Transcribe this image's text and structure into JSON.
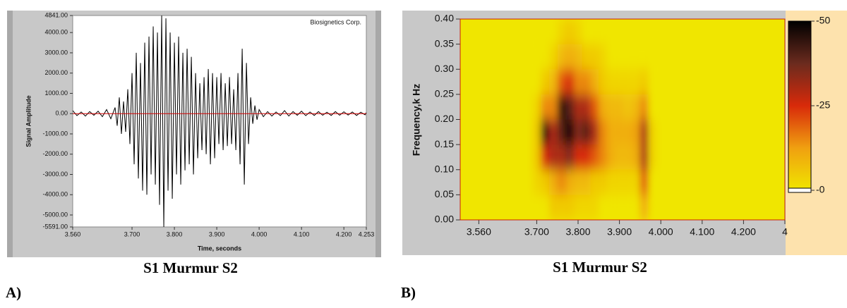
{
  "chart_data": [
    {
      "type": "line",
      "xlabel": "Time, seconds",
      "ylabel": "Signal Amplitude",
      "annotation": "Biosignetics Corp.",
      "caption": "S1   Murmur  S2",
      "panel": "A)",
      "xlim": [
        3.56,
        4.253
      ],
      "ylim": [
        -5591,
        4841
      ],
      "xticks": [
        {
          "value": 3.56,
          "label": "3.560"
        },
        {
          "value": 3.7,
          "label": "3.700"
        },
        {
          "value": 3.8,
          "label": "3.800"
        },
        {
          "value": 3.9,
          "label": "3.900"
        },
        {
          "value": 4.0,
          "label": "4.000"
        },
        {
          "value": 4.1,
          "label": "4.100"
        },
        {
          "value": 4.2,
          "label": "4.200"
        },
        {
          "value": 4.253,
          "label": "4.253"
        }
      ],
      "yticks": [
        {
          "value": 4841,
          "label": "4841.00"
        },
        {
          "value": 4000,
          "label": "4000.00"
        },
        {
          "value": 3000,
          "label": "3000.00"
        },
        {
          "value": 2000,
          "label": "2000.00"
        },
        {
          "value": 1000,
          "label": "1000.00"
        },
        {
          "value": 0,
          "label": "0.00"
        },
        {
          "value": -1000,
          "label": "-1000.00"
        },
        {
          "value": -2000,
          "label": "-2000.00"
        },
        {
          "value": -3000,
          "label": "-3000.00"
        },
        {
          "value": -4000,
          "label": "-4000.00"
        },
        {
          "value": -5000,
          "label": "-5000.00"
        },
        {
          "value": -5591,
          "label": "-5591.00"
        }
      ],
      "series": [
        {
          "color": "#000000",
          "x": [
            3.56,
            3.57,
            3.58,
            3.59,
            3.6,
            3.61,
            3.62,
            3.63,
            3.64,
            3.65,
            3.66,
            3.665,
            3.67,
            3.675,
            3.68,
            3.685,
            3.69,
            3.695,
            3.7,
            3.705,
            3.71,
            3.715,
            3.72,
            3.725,
            3.73,
            3.735,
            3.74,
            3.745,
            3.75,
            3.755,
            3.76,
            3.765,
            3.77,
            3.775,
            3.78,
            3.785,
            3.79,
            3.795,
            3.8,
            3.805,
            3.81,
            3.815,
            3.82,
            3.825,
            3.83,
            3.835,
            3.84,
            3.845,
            3.85,
            3.855,
            3.86,
            3.865,
            3.87,
            3.875,
            3.88,
            3.885,
            3.89,
            3.895,
            3.9,
            3.905,
            3.91,
            3.915,
            3.92,
            3.925,
            3.93,
            3.935,
            3.94,
            3.945,
            3.95,
            3.955,
            3.96,
            3.965,
            3.97,
            3.975,
            3.98,
            3.985,
            3.99,
            3.995,
            4,
            4.01,
            4.02,
            4.03,
            4.04,
            4.05,
            4.06,
            4.07,
            4.08,
            4.09,
            4.1,
            4.11,
            4.12,
            4.13,
            4.14,
            4.15,
            4.16,
            4.17,
            4.18,
            4.19,
            4.2,
            4.21,
            4.22,
            4.23,
            4.24,
            4.25,
            4.253
          ],
          "values": [
            150,
            -100,
            80,
            -120,
            100,
            -80,
            120,
            -150,
            200,
            -250,
            300,
            -600,
            800,
            -1000,
            600,
            -900,
            1200,
            -1500,
            2000,
            -2500,
            3000,
            -3200,
            2500,
            -3800,
            3500,
            -4000,
            3800,
            -3000,
            4300,
            -3500,
            4000,
            -4500,
            4841,
            -5591,
            4700,
            -3800,
            4000,
            -4200,
            3500,
            -3000,
            3800,
            -3500,
            3000,
            -2800,
            3200,
            -2500,
            2800,
            -3000,
            2000,
            -2200,
            1500,
            -1800,
            1800,
            -2000,
            2200,
            -2500,
            2000,
            -2200,
            1800,
            -1500,
            2000,
            -1800,
            1500,
            -1600,
            1800,
            -1500,
            1200,
            -1800,
            2000,
            -2500,
            3200,
            -3500,
            2500,
            -1500,
            800,
            -500,
            400,
            -300,
            200,
            -150,
            100,
            -120,
            80,
            -100,
            150,
            -120,
            100,
            -80,
            120,
            -100,
            80,
            -90,
            100,
            -80,
            70,
            -90,
            100,
            -80,
            90,
            -70,
            80,
            -90,
            70,
            -60,
            50
          ]
        },
        {
          "color": "#d00000",
          "x": [
            3.56,
            4.253
          ],
          "values": [
            0,
            0
          ]
        }
      ]
    },
    {
      "type": "heatmap",
      "ylabel": "Frequency,k Hz",
      "caption": "S1   Murmur  S2",
      "panel": "B)",
      "xlim": [
        3.515,
        4.3
      ],
      "ylim": [
        0,
        0.4
      ],
      "xticks": [
        {
          "value": 3.56,
          "label": "3.560"
        },
        {
          "value": 3.7,
          "label": "3.700"
        },
        {
          "value": 3.8,
          "label": "3.800"
        },
        {
          "value": 3.9,
          "label": "3.900"
        },
        {
          "value": 4.0,
          "label": "4.000"
        },
        {
          "value": 4.1,
          "label": "4.100"
        },
        {
          "value": 4.2,
          "label": "4.200"
        },
        {
          "value": 4.3,
          "label": "4"
        }
      ],
      "yticks": [
        {
          "value": 0,
          "label": "0.00"
        },
        {
          "value": 0.05,
          "label": "0.05"
        },
        {
          "value": 0.1,
          "label": "0.10"
        },
        {
          "value": 0.15,
          "label": "0.15"
        },
        {
          "value": 0.2,
          "label": "0.20"
        },
        {
          "value": 0.25,
          "label": "0.25"
        },
        {
          "value": 0.3,
          "label": "0.30"
        },
        {
          "value": 0.35,
          "label": "0.35"
        },
        {
          "value": 0.4,
          "label": "0.40"
        }
      ],
      "zlim": [
        -50,
        0
      ],
      "zticks": [
        -50,
        -25,
        {
          "value": 0,
          "label": "-0"
        }
      ],
      "colors": [
        "#000000",
        "#6b2b1e",
        "#d82a0a",
        "#f0a010",
        "#f0e600"
      ],
      "x": [
        3.7,
        3.72,
        3.74,
        3.76,
        3.78,
        3.8,
        3.82,
        3.84,
        3.86,
        3.88,
        3.9,
        3.92,
        3.94,
        3.96,
        3.98
      ],
      "y": [
        0.025,
        0.075,
        0.125,
        0.175,
        0.225,
        0.275,
        0.325,
        0.375
      ],
      "z": [
        [
          0,
          0,
          -5,
          -5,
          -5,
          -3,
          -3,
          -3,
          0,
          0,
          0,
          0,
          0,
          -10,
          0
        ],
        [
          -3,
          -5,
          -10,
          -15,
          -10,
          -8,
          -8,
          -5,
          -5,
          -3,
          -3,
          -3,
          -3,
          -20,
          0
        ],
        [
          -5,
          -25,
          -30,
          -30,
          -35,
          -25,
          -25,
          -20,
          -15,
          -10,
          -8,
          -8,
          -10,
          -30,
          -3
        ],
        [
          -5,
          -45,
          -30,
          -40,
          -50,
          -35,
          -40,
          -30,
          -15,
          -10,
          -10,
          -10,
          -12,
          -30,
          -3
        ],
        [
          -3,
          -15,
          -15,
          -45,
          -40,
          -30,
          -30,
          -20,
          -10,
          -8,
          -8,
          -6,
          -8,
          -15,
          0
        ],
        [
          0,
          -5,
          -8,
          -20,
          -25,
          -15,
          -15,
          -10,
          -5,
          -3,
          -3,
          -3,
          -3,
          -5,
          0
        ],
        [
          0,
          0,
          -3,
          -8,
          -10,
          -8,
          -5,
          -5,
          -3,
          0,
          0,
          0,
          0,
          0,
          0
        ],
        [
          0,
          0,
          0,
          -3,
          -5,
          -3,
          0,
          0,
          0,
          0,
          0,
          0,
          0,
          0,
          0
        ]
      ]
    }
  ]
}
